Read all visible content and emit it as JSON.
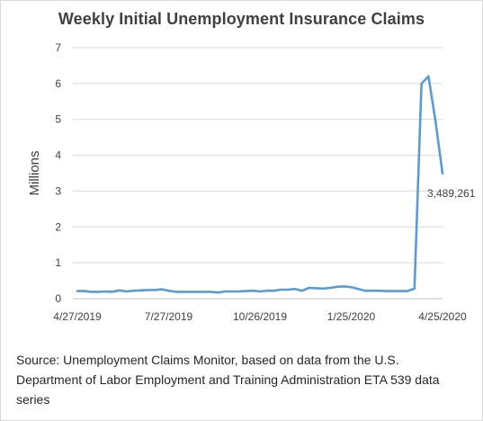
{
  "chart_data": {
    "type": "line",
    "title": "Weekly Initial Unemployment Insurance Claims",
    "ylabel": "Millions",
    "xlabel": "",
    "ylim": [
      0,
      7
    ],
    "yticks": [
      "0",
      "1",
      "2",
      "3",
      "4",
      "5",
      "6",
      "7"
    ],
    "xticks": [
      "4/27/2019",
      "7/27/2019",
      "10/26/2019",
      "1/25/2020",
      "4/25/2020"
    ],
    "grid": true,
    "line_color": "#5b9bd5",
    "series": [
      {
        "x": [
          "4/27/2019",
          "5/4/2019",
          "5/11/2019",
          "5/18/2019",
          "5/25/2019",
          "6/1/2019",
          "6/8/2019",
          "6/15/2019",
          "6/22/2019",
          "6/29/2019",
          "7/6/2019",
          "7/13/2019",
          "7/20/2019",
          "7/27/2019",
          "8/3/2019",
          "8/10/2019",
          "8/17/2019",
          "8/24/2019",
          "8/31/2019",
          "9/7/2019",
          "9/14/2019",
          "9/21/2019",
          "9/28/2019",
          "10/5/2019",
          "10/12/2019",
          "10/19/2019",
          "10/26/2019",
          "11/2/2019",
          "11/9/2019",
          "11/16/2019",
          "11/23/2019",
          "11/30/2019",
          "12/7/2019",
          "12/14/2019",
          "12/21/2019",
          "12/28/2019",
          "1/4/2020",
          "1/11/2020",
          "1/18/2020",
          "1/25/2020",
          "2/1/2020",
          "2/8/2020",
          "2/15/2020",
          "2/22/2020",
          "2/29/2020",
          "3/7/2020",
          "3/14/2020",
          "3/21/2020",
          "3/28/2020",
          "4/4/2020",
          "4/11/2020",
          "4/18/2020",
          "4/25/2020"
        ],
        "values": [
          0.21,
          0.21,
          0.19,
          0.19,
          0.2,
          0.19,
          0.23,
          0.2,
          0.22,
          0.23,
          0.24,
          0.24,
          0.26,
          0.22,
          0.19,
          0.19,
          0.19,
          0.19,
          0.19,
          0.19,
          0.17,
          0.2,
          0.2,
          0.2,
          0.21,
          0.22,
          0.2,
          0.22,
          0.22,
          0.25,
          0.25,
          0.27,
          0.22,
          0.3,
          0.29,
          0.28,
          0.3,
          0.33,
          0.34,
          0.32,
          0.27,
          0.22,
          0.22,
          0.22,
          0.21,
          0.21,
          0.21,
          0.21,
          0.28,
          6.0,
          6.2,
          4.95,
          3.49
        ]
      }
    ],
    "annotations": [
      {
        "x": "4/25/2020",
        "y": 3.489261,
        "text": "3,489,261"
      }
    ]
  },
  "source_note": "Source: Unemployment Claims Monitor, based on data from the U.S. Department of Labor Employment and Training Administration ETA 539 data series"
}
